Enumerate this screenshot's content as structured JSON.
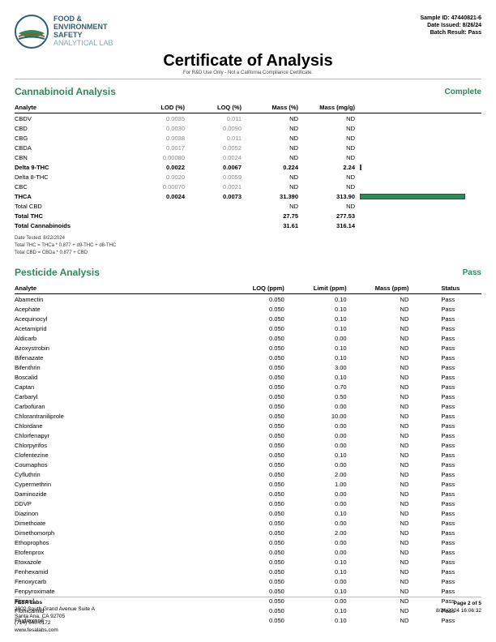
{
  "lab": {
    "line1": "FOOD &",
    "line2": "ENVIRONMENT",
    "line3": "SAFETY",
    "line4": "ANALYTICAL LAB"
  },
  "header": {
    "sample": "Sample ID: 47440821-6",
    "issued": "Date Issued: 8/26/24",
    "batch": "Batch Result: Pass"
  },
  "title": "Certificate of Analysis",
  "subtitle": "For R&D Use Only - Not a California Compliance Certificate.",
  "cannabinoid": {
    "title": "Cannabinoid Analysis",
    "status": "Complete",
    "columns": [
      "Analyte",
      "LOD (%)",
      "LOQ (%)",
      "Mass (%)",
      "Mass (mg/g)",
      ""
    ],
    "rows": [
      {
        "a": "CBDV",
        "lod": "0.0035",
        "loq": "0.011",
        "mp": "ND",
        "mg": "ND",
        "bold": false,
        "gray": true
      },
      {
        "a": "CBD",
        "lod": "0.0030",
        "loq": "0.0090",
        "mp": "ND",
        "mg": "ND",
        "bold": false,
        "gray": true
      },
      {
        "a": "CBG",
        "lod": "0.0038",
        "loq": "0.011",
        "mp": "ND",
        "mg": "ND",
        "bold": false,
        "gray": true
      },
      {
        "a": "CBDA",
        "lod": "0.0017",
        "loq": "0.0052",
        "mp": "ND",
        "mg": "ND",
        "bold": false,
        "gray": true
      },
      {
        "a": "CBN",
        "lod": "0.00080",
        "loq": "0.0024",
        "mp": "ND",
        "mg": "ND",
        "bold": false,
        "gray": true
      },
      {
        "a": "Delta 9-THC",
        "lod": "0.0022",
        "loq": "0.0067",
        "mp": "0.224",
        "mg": "2.24",
        "bold": true,
        "bar": 1
      },
      {
        "a": "Delta 8-THC",
        "lod": "0.0020",
        "loq": "0.0059",
        "mp": "ND",
        "mg": "ND",
        "bold": false,
        "gray": true
      },
      {
        "a": "CBC",
        "lod": "0.00070",
        "loq": "0.0021",
        "mp": "ND",
        "mg": "ND",
        "bold": false,
        "gray": true
      },
      {
        "a": "THCA",
        "lod": "0.0024",
        "loq": "0.0073",
        "mp": "31.390",
        "mg": "313.90",
        "bold": true,
        "bar": 130
      },
      {
        "a": "Total CBD",
        "lod": "",
        "loq": "",
        "mp": "ND",
        "mg": "ND",
        "bold": false
      },
      {
        "a": "Total THC",
        "lod": "",
        "loq": "",
        "mp": "27.75",
        "mg": "277.53",
        "bold": true
      },
      {
        "a": "Total Cannabinoids",
        "lod": "",
        "loq": "",
        "mp": "31.61",
        "mg": "316.14",
        "bold": true
      }
    ],
    "notes": [
      "Date Tested: 8/22/2024",
      "Total THC = THCa * 0.877 + d9-THC + d8-THC",
      "Total CBD = CBDa * 0.877 + CBD"
    ]
  },
  "pesticide": {
    "title": "Pesticide Analysis",
    "status": "Pass",
    "columns": [
      "Analyte",
      "LOQ (ppm)",
      "Limit (ppm)",
      "Mass (ppm)",
      "Status"
    ],
    "rows": [
      [
        "Abamectin",
        "0.050",
        "0.10",
        "ND",
        "Pass"
      ],
      [
        "Acephate",
        "0.050",
        "0.10",
        "ND",
        "Pass"
      ],
      [
        "Acequinocyl",
        "0.050",
        "0.10",
        "ND",
        "Pass"
      ],
      [
        "Acetamiprid",
        "0.050",
        "0.10",
        "ND",
        "Pass"
      ],
      [
        "Aldicarb",
        "0.050",
        "0.00",
        "ND",
        "Pass"
      ],
      [
        "Azoxystrobin",
        "0.050",
        "0.10",
        "ND",
        "Pass"
      ],
      [
        "Bifenazate",
        "0.050",
        "0.10",
        "ND",
        "Pass"
      ],
      [
        "Bifenthrin",
        "0.050",
        "3.00",
        "ND",
        "Pass"
      ],
      [
        "Boscalid",
        "0.050",
        "0.10",
        "ND",
        "Pass"
      ],
      [
        "Captan",
        "0.050",
        "0.70",
        "ND",
        "Pass"
      ],
      [
        "Carbaryl",
        "0.050",
        "0.50",
        "ND",
        "Pass"
      ],
      [
        "Carbofuran",
        "0.050",
        "0.00",
        "ND",
        "Pass"
      ],
      [
        "Chlorantraniliprole",
        "0.050",
        "10.00",
        "ND",
        "Pass"
      ],
      [
        "Chlordane",
        "0.050",
        "0.00",
        "ND",
        "Pass"
      ],
      [
        "Chlorfenapyr",
        "0.050",
        "0.00",
        "ND",
        "Pass"
      ],
      [
        "Chlorpyrifos",
        "0.050",
        "0.00",
        "ND",
        "Pass"
      ],
      [
        "Clofentezine",
        "0.050",
        "0.10",
        "ND",
        "Pass"
      ],
      [
        "Coumaphos",
        "0.050",
        "0.00",
        "ND",
        "Pass"
      ],
      [
        "Cyfluthrin",
        "0.050",
        "2.00",
        "ND",
        "Pass"
      ],
      [
        "Cypermethrin",
        "0.050",
        "1.00",
        "ND",
        "Pass"
      ],
      [
        "Daminozide",
        "0.050",
        "0.00",
        "ND",
        "Pass"
      ],
      [
        "DDVP",
        "0.050",
        "0.00",
        "ND",
        "Pass"
      ],
      [
        "Diazinon",
        "0.050",
        "0.10",
        "ND",
        "Pass"
      ],
      [
        "Dimethoate",
        "0.050",
        "0.00",
        "ND",
        "Pass"
      ],
      [
        "Dimethomorph",
        "0.050",
        "2.00",
        "ND",
        "Pass"
      ],
      [
        "Ethoprophos",
        "0.050",
        "0.00",
        "ND",
        "Pass"
      ],
      [
        "Etofenprox",
        "0.050",
        "0.00",
        "ND",
        "Pass"
      ],
      [
        "Etoxazole",
        "0.050",
        "0.10",
        "ND",
        "Pass"
      ],
      [
        "Fenhexamid",
        "0.050",
        "0.10",
        "ND",
        "Pass"
      ],
      [
        "Fenoxycarb",
        "0.050",
        "0.00",
        "ND",
        "Pass"
      ],
      [
        "Fenpyroximate",
        "0.050",
        "0.10",
        "ND",
        "Pass"
      ],
      [
        "Fipronil",
        "0.050",
        "0.00",
        "ND",
        "Pass"
      ],
      [
        "Flonicamid",
        "0.050",
        "0.10",
        "ND",
        "Pass"
      ],
      [
        "Fludioxonil",
        "0.050",
        "0.10",
        "ND",
        "Pass"
      ]
    ]
  },
  "footer": {
    "company": "FESA Labs",
    "addr1": "2002 South Grand Avenue Suite A",
    "addr2": "Santa Ana, CA 92705",
    "phone": "(714) 540-0172",
    "web": "www.fesalabs.com",
    "page": "Page 2 of 5",
    "stamp": "8/26/2024 16:06:32"
  },
  "colors": {
    "green": "#2e8b57"
  }
}
